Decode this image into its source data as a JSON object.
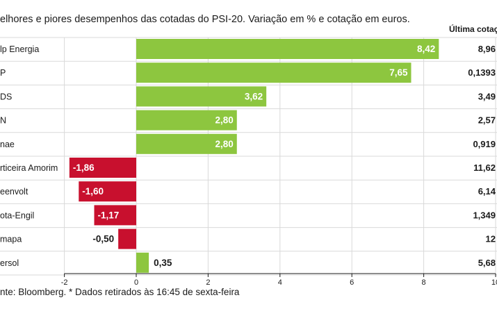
{
  "chart_data": {
    "type": "bar",
    "orientation": "horizontal",
    "subtitle": "elhores e piores desempenhos das cotadas do PSI-20. Variação em % e cotação em euros.",
    "price_header": "Última cotaç",
    "categories": [
      "lp Energia",
      "P",
      "DS",
      "N",
      "nae",
      "rticeira Amorim",
      "eenvolt",
      "ota-Engil",
      "mapa",
      "ersol"
    ],
    "values": [
      8.42,
      7.65,
      3.62,
      2.8,
      2.8,
      -1.86,
      -1.6,
      -1.17,
      -0.5,
      0.35
    ],
    "value_labels": [
      "8,42",
      "7,65",
      "3,62",
      "2,80",
      "2,80",
      "-1,86",
      "-1,60",
      "-1,17",
      "-0,50",
      "0,35"
    ],
    "prices": [
      "8,96",
      "0,1393",
      "3,49",
      "2,57",
      "0,919",
      "11,62",
      "6,14",
      "1,349",
      "12",
      "5,68"
    ],
    "xlim": [
      -2,
      10
    ],
    "xticks": [
      -2,
      0,
      2,
      4,
      6,
      8,
      10
    ],
    "xtick_labels": [
      "-2",
      "0",
      "2",
      "4",
      "6",
      "8",
      "10"
    ],
    "grid": true,
    "colors": {
      "positive": "#8dc63f",
      "negative": "#c8102e",
      "grid": "#d9d9d9",
      "axis": "#1a1a1a"
    },
    "source": "nte: Bloomberg.  * Dados retirados às 16:45 de sexta-feira"
  }
}
